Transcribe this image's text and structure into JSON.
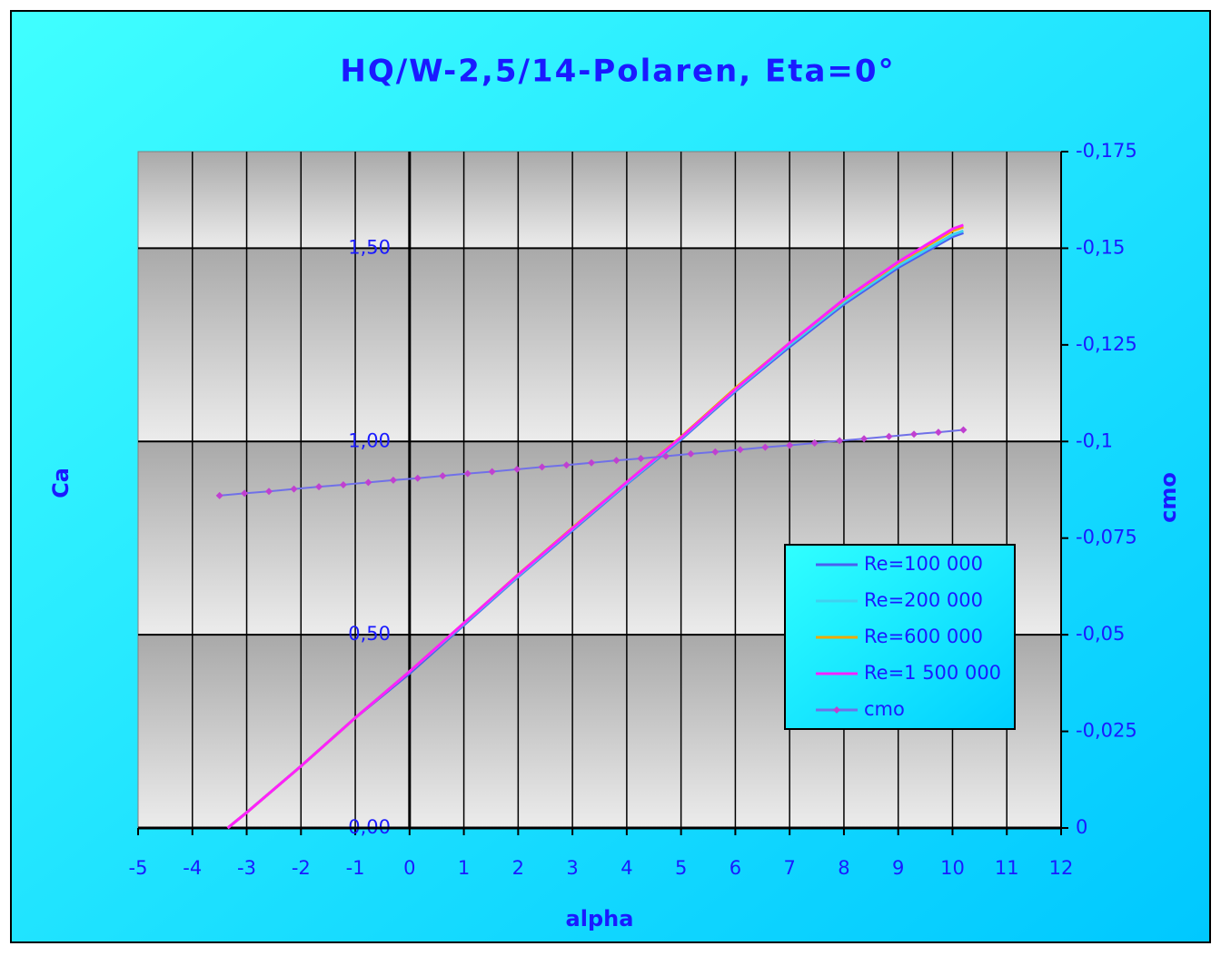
{
  "chart_data": {
    "type": "line",
    "title": "HQ/W-2,5/14-Polaren, Eta=0°",
    "x_label": "alpha",
    "y_label": "Ca",
    "y2_label": "cmo",
    "xlim": [
      -5,
      12
    ],
    "xticks": [
      -5,
      -4,
      -3,
      -2,
      -1,
      0,
      1,
      2,
      3,
      4,
      5,
      6,
      7,
      8,
      9,
      10,
      11,
      12
    ],
    "ylim": [
      0,
      1.75
    ],
    "yticks": [
      {
        "value": 0,
        "label": "0,00"
      },
      {
        "value": 0.5,
        "label": "0,50"
      },
      {
        "value": 1,
        "label": "1,00"
      },
      {
        "value": 1.5,
        "label": "1,50"
      }
    ],
    "y2lim": [
      0,
      -0.175
    ],
    "y2ticks": [
      0,
      {
        "value": -0.025,
        "label": "-0,025"
      },
      {
        "value": -0.05,
        "label": "-0,05"
      },
      {
        "value": -0.075,
        "label": "-0,075"
      },
      {
        "value": -0.1,
        "label": "-0,1"
      },
      {
        "value": -0.125,
        "label": "-0,125"
      },
      {
        "value": -0.15,
        "label": "-0,15"
      },
      {
        "value": -0.175,
        "label": "-0,175"
      }
    ],
    "grid": true,
    "legend": "right",
    "series": [
      {
        "name": "Re=100 000",
        "color": "#4a5ff0",
        "x": [
          -3.35,
          -3,
          -2,
          -1,
          0,
          1,
          2,
          3,
          4,
          5,
          6,
          7,
          8,
          9,
          10,
          10.2
        ],
        "values": [
          0,
          0.04,
          0.16,
          0.285,
          0.4,
          0.525,
          0.65,
          0.77,
          0.89,
          1.005,
          1.13,
          1.245,
          1.355,
          1.45,
          1.53,
          1.54
        ]
      },
      {
        "name": "Re=200 000",
        "color": "#40d0f0",
        "x": [
          -3.35,
          -3,
          -2,
          -1,
          0,
          1,
          2,
          3,
          4,
          5,
          6,
          7,
          8,
          9,
          10,
          10.2
        ],
        "values": [
          0,
          0.04,
          0.16,
          0.285,
          0.405,
          0.528,
          0.652,
          0.773,
          0.892,
          1.008,
          1.133,
          1.25,
          1.36,
          1.455,
          1.535,
          1.545
        ]
      },
      {
        "name": "Re=600 000",
        "color": "#f0a800",
        "x": [
          -3.35,
          -3,
          -2,
          -1,
          0,
          1,
          2,
          3,
          4,
          5,
          6,
          7,
          8,
          9,
          10,
          10.2
        ],
        "values": [
          0,
          0.04,
          0.16,
          0.285,
          0.405,
          0.53,
          0.656,
          0.777,
          0.895,
          1.012,
          1.138,
          1.255,
          1.366,
          1.462,
          1.545,
          1.555
        ]
      },
      {
        "name": "Re=1 500 000",
        "color": "#ff20ff",
        "x": [
          -3.35,
          -3,
          -2,
          -1,
          0,
          1,
          2,
          3,
          4,
          5,
          6,
          7,
          8,
          9,
          10,
          10.2
        ],
        "values": [
          0,
          0.04,
          0.16,
          0.285,
          0.405,
          0.53,
          0.655,
          0.775,
          0.895,
          1.01,
          1.135,
          1.255,
          1.368,
          1.465,
          1.55,
          1.56
        ]
      },
      {
        "name": "cmo",
        "color": "#7070e8",
        "marker_color": "#c040d0",
        "axis": "y2",
        "x": [
          -3.5,
          -3.04,
          -2.59,
          -2.13,
          -1.67,
          -1.22,
          -0.76,
          -0.3,
          0.15,
          0.61,
          1.07,
          1.52,
          1.98,
          2.44,
          2.89,
          3.35,
          3.81,
          4.26,
          4.72,
          5.18,
          5.63,
          6.09,
          6.55,
          7.0,
          7.46,
          7.92,
          8.37,
          8.83,
          9.29,
          9.74,
          10.2
        ],
        "values": [
          -0.086,
          -0.0866,
          -0.0871,
          -0.0877,
          -0.0883,
          -0.0888,
          -0.0894,
          -0.09,
          -0.0905,
          -0.0911,
          -0.0917,
          -0.0922,
          -0.0928,
          -0.0934,
          -0.0939,
          -0.0945,
          -0.0951,
          -0.0956,
          -0.0962,
          -0.0968,
          -0.0973,
          -0.0979,
          -0.0985,
          -0.099,
          -0.0996,
          -0.1002,
          -0.1007,
          -0.1013,
          -0.1019,
          -0.1024,
          -0.103
        ]
      }
    ]
  }
}
